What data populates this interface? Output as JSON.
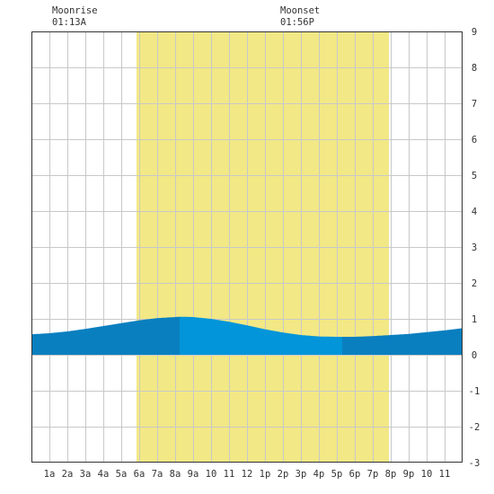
{
  "moon": {
    "rise_label": "Moonrise",
    "rise_time": "01:13A",
    "set_label": "Moonset",
    "set_time": "01:56P"
  },
  "chart_data": {
    "type": "area",
    "title": "",
    "xlabel": "",
    "ylabel": "",
    "xlim": [
      0,
      24
    ],
    "ylim": [
      -3,
      9
    ],
    "grid": true,
    "x_tick_labels": [
      {
        "hour": 1,
        "label": "1a"
      },
      {
        "hour": 2,
        "label": "2a"
      },
      {
        "hour": 3,
        "label": "3a"
      },
      {
        "hour": 4,
        "label": "4a"
      },
      {
        "hour": 5,
        "label": "5a"
      },
      {
        "hour": 6,
        "label": "6a"
      },
      {
        "hour": 7,
        "label": "7a"
      },
      {
        "hour": 8,
        "label": "8a"
      },
      {
        "hour": 9,
        "label": "9a"
      },
      {
        "hour": 10,
        "label": "10"
      },
      {
        "hour": 11,
        "label": "11"
      },
      {
        "hour": 12,
        "label": "12"
      },
      {
        "hour": 13,
        "label": "1p"
      },
      {
        "hour": 14,
        "label": "2p"
      },
      {
        "hour": 15,
        "label": "3p"
      },
      {
        "hour": 16,
        "label": "4p"
      },
      {
        "hour": 17,
        "label": "5p"
      },
      {
        "hour": 18,
        "label": "6p"
      },
      {
        "hour": 19,
        "label": "7p"
      },
      {
        "hour": 20,
        "label": "8p"
      },
      {
        "hour": 21,
        "label": "9p"
      },
      {
        "hour": 22,
        "label": "10"
      },
      {
        "hour": 23,
        "label": "11"
      }
    ],
    "y_ticks": [
      9,
      8,
      7,
      6,
      5,
      4,
      3,
      2,
      1,
      0,
      -1,
      -2,
      -3
    ],
    "daylight": {
      "start_hour": 5.85,
      "end_hour": 19.9
    },
    "tide_points": [
      {
        "x": 0,
        "y": 0.57
      },
      {
        "x": 1,
        "y": 0.6
      },
      {
        "x": 2,
        "y": 0.65
      },
      {
        "x": 3,
        "y": 0.72
      },
      {
        "x": 4,
        "y": 0.8
      },
      {
        "x": 5,
        "y": 0.88
      },
      {
        "x": 6,
        "y": 0.96
      },
      {
        "x": 7,
        "y": 1.02
      },
      {
        "x": 8,
        "y": 1.05
      },
      {
        "x": 8.3,
        "y": 1.06
      },
      {
        "x": 9,
        "y": 1.05
      },
      {
        "x": 10,
        "y": 1.0
      },
      {
        "x": 11,
        "y": 0.92
      },
      {
        "x": 12,
        "y": 0.82
      },
      {
        "x": 13,
        "y": 0.71
      },
      {
        "x": 14,
        "y": 0.62
      },
      {
        "x": 15,
        "y": 0.55
      },
      {
        "x": 16,
        "y": 0.51
      },
      {
        "x": 17,
        "y": 0.5
      },
      {
        "x": 18,
        "y": 0.5
      },
      {
        "x": 19,
        "y": 0.52
      },
      {
        "x": 20,
        "y": 0.55
      },
      {
        "x": 21,
        "y": 0.58
      },
      {
        "x": 22,
        "y": 0.63
      },
      {
        "x": 23,
        "y": 0.68
      },
      {
        "x": 24,
        "y": 0.74
      }
    ],
    "tide_segments": [
      {
        "from": 0,
        "to": 8.25,
        "phase": "rising"
      },
      {
        "from": 8.25,
        "to": 17.3,
        "phase": "falling"
      },
      {
        "from": 17.3,
        "to": 24,
        "phase": "rising"
      }
    ],
    "colors": {
      "daylight": "#f2e885",
      "grid": "#c8c8c8",
      "rising": "#0a7fbf",
      "falling": "#0295d9",
      "axis": "#333333"
    }
  }
}
